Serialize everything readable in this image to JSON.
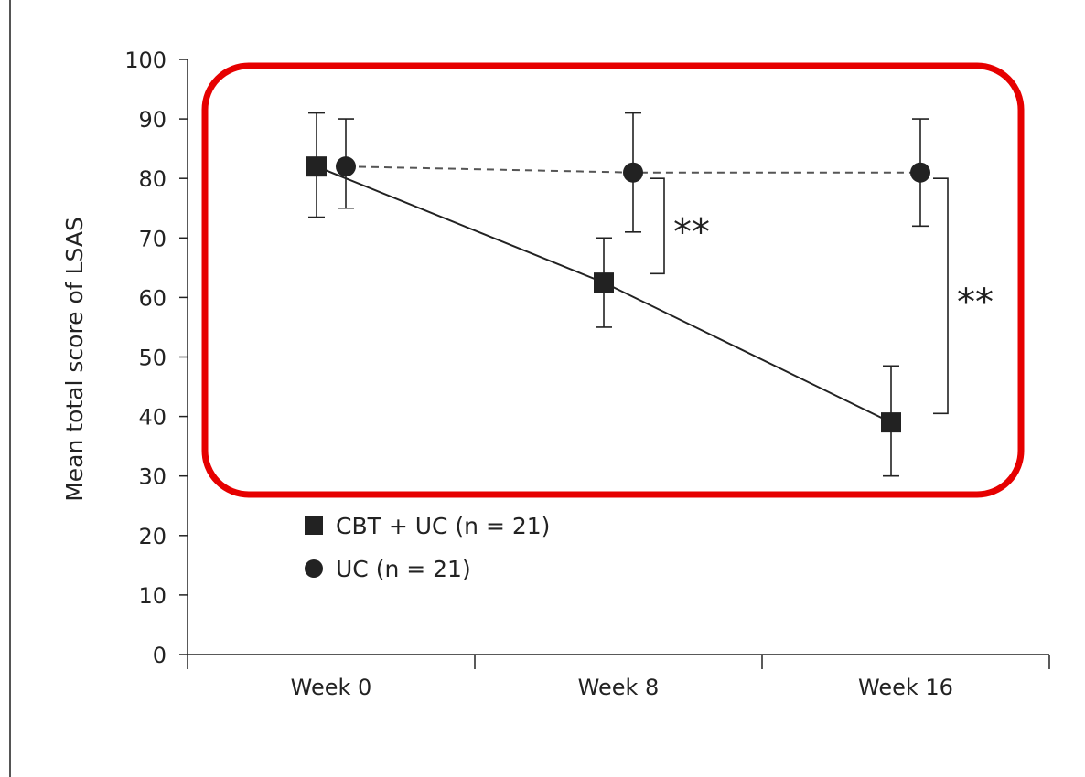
{
  "chart_data": {
    "type": "line",
    "ylabel": "Mean total score of LSAS",
    "xlabel": "",
    "categories": [
      "Week 0",
      "Week 8",
      "Week 16"
    ],
    "ylim": [
      0,
      100
    ],
    "yticks": [
      0,
      10,
      20,
      30,
      40,
      50,
      60,
      70,
      80,
      90,
      100
    ],
    "grid": false,
    "legend_position": "lower-left",
    "series": [
      {
        "name": "CBT + UC (n = 21)",
        "marker": "square",
        "line_style": "solid",
        "values": [
          82,
          62.5,
          39
        ],
        "error_low": [
          73.5,
          55,
          30
        ],
        "error_high": [
          91,
          70,
          48.5
        ]
      },
      {
        "name": "UC (n = 21)",
        "marker": "circle",
        "line_style": "dashed",
        "values": [
          82,
          81,
          81
        ],
        "error_low": [
          75,
          71,
          72
        ],
        "error_high": [
          90,
          91,
          90
        ]
      }
    ],
    "annotations": [
      {
        "text": "**",
        "category": "Week 8",
        "range": [
          64,
          80
        ]
      },
      {
        "text": "**",
        "category": "Week 16",
        "range": [
          40.5,
          80
        ]
      }
    ],
    "highlight": {
      "shape": "rounded-rectangle",
      "color": "#e60000"
    }
  }
}
